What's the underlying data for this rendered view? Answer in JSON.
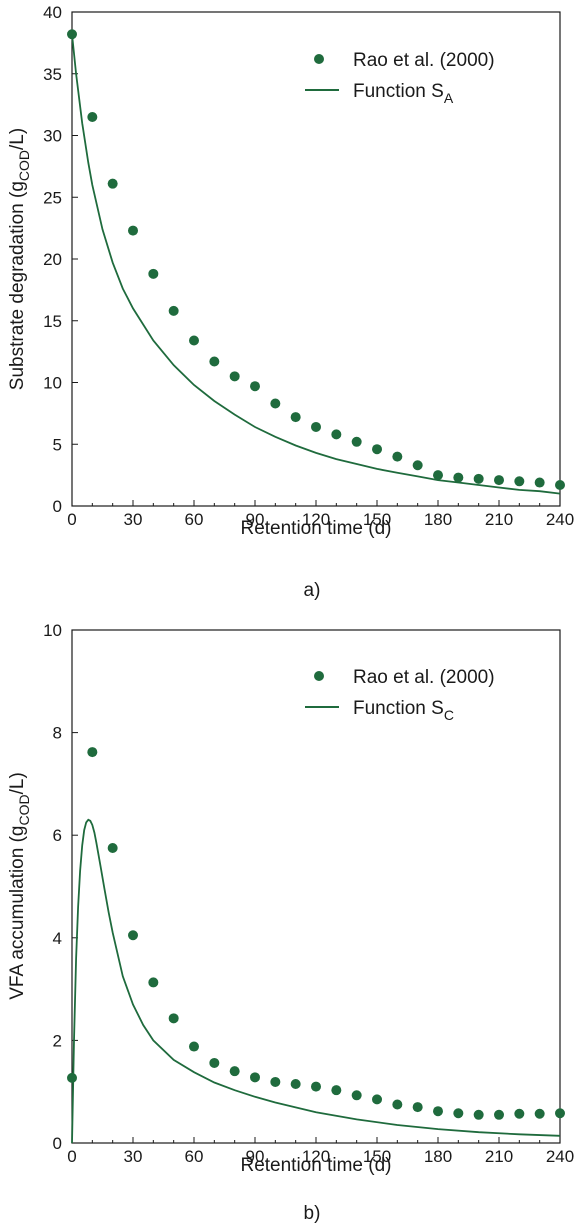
{
  "chart_data": [
    {
      "type": "scatter",
      "panel_label": "a)",
      "xlabel": "Retention time (d)",
      "ylabel_main": "Substrate degradation (g",
      "ylabel_sub": "COD",
      "ylabel_end": "/L)",
      "xlim": [
        0,
        240
      ],
      "ylim": [
        0,
        40
      ],
      "xticks": [
        0,
        30,
        60,
        90,
        120,
        150,
        180,
        210,
        240
      ],
      "yticks": [
        0,
        5,
        10,
        15,
        20,
        25,
        30,
        35,
        40
      ],
      "grid": false,
      "legend_position": "top-right",
      "color": "#1f6b3d",
      "series": [
        {
          "name": "Rao et al. (2000)",
          "kind": "points",
          "x": [
            0,
            10,
            20,
            30,
            40,
            50,
            60,
            70,
            80,
            90,
            100,
            110,
            120,
            130,
            140,
            150,
            160,
            170,
            180,
            190,
            200,
            210,
            220,
            230,
            240
          ],
          "y": [
            38.2,
            31.5,
            26.1,
            22.3,
            18.8,
            15.8,
            13.4,
            11.7,
            10.5,
            9.7,
            8.3,
            7.2,
            6.4,
            5.8,
            5.2,
            4.6,
            4.0,
            3.3,
            2.5,
            2.3,
            2.2,
            2.1,
            2.0,
            1.9,
            1.7
          ]
        },
        {
          "name": "Function S",
          "name_sub": "A",
          "kind": "line",
          "x": [
            0,
            2,
            5,
            8,
            10,
            15,
            20,
            25,
            30,
            40,
            50,
            60,
            70,
            80,
            90,
            100,
            110,
            120,
            130,
            140,
            150,
            160,
            170,
            180,
            190,
            200,
            210,
            220,
            230,
            240
          ],
          "y": [
            38.2,
            35.0,
            31.0,
            27.8,
            26.0,
            22.4,
            19.7,
            17.6,
            16.0,
            13.4,
            11.4,
            9.8,
            8.5,
            7.4,
            6.4,
            5.6,
            4.9,
            4.3,
            3.8,
            3.4,
            3.0,
            2.7,
            2.4,
            2.1,
            1.9,
            1.7,
            1.5,
            1.3,
            1.2,
            1.0
          ]
        }
      ]
    },
    {
      "type": "scatter",
      "panel_label": "b)",
      "xlabel": "Retention time (d)",
      "ylabel_main": "VFA accumulation (g",
      "ylabel_sub": "COD",
      "ylabel_end": "/L)",
      "xlim": [
        0,
        240
      ],
      "ylim": [
        0,
        10
      ],
      "xticks": [
        0,
        30,
        60,
        90,
        120,
        150,
        180,
        210,
        240
      ],
      "yticks": [
        0,
        2,
        4,
        6,
        8,
        10
      ],
      "grid": false,
      "legend_position": "top-right",
      "color": "#1f6b3d",
      "series": [
        {
          "name": "Rao et al. (2000)",
          "kind": "points",
          "x": [
            0,
            10,
            20,
            30,
            40,
            50,
            60,
            70,
            80,
            90,
            100,
            110,
            120,
            130,
            140,
            150,
            160,
            170,
            180,
            190,
            200,
            210,
            220,
            230,
            240
          ],
          "y": [
            1.27,
            7.62,
            5.75,
            4.05,
            3.13,
            2.43,
            1.88,
            1.56,
            1.4,
            1.28,
            1.19,
            1.15,
            1.1,
            1.03,
            0.93,
            0.85,
            0.75,
            0.7,
            0.62,
            0.58,
            0.55,
            0.55,
            0.57,
            0.57,
            0.58
          ]
        },
        {
          "name": "Function S",
          "name_sub": "C",
          "kind": "line",
          "x": [
            0,
            1,
            2,
            3,
            4,
            5,
            6,
            7,
            8,
            9,
            10,
            11,
            12,
            14,
            16,
            18,
            20,
            25,
            30,
            35,
            40,
            50,
            60,
            70,
            80,
            90,
            100,
            120,
            140,
            160,
            180,
            200,
            220,
            240
          ],
          "y": [
            0.0,
            2.0,
            3.6,
            4.6,
            5.3,
            5.8,
            6.1,
            6.25,
            6.3,
            6.28,
            6.2,
            6.05,
            5.85,
            5.4,
            4.95,
            4.5,
            4.1,
            3.25,
            2.7,
            2.3,
            2.0,
            1.62,
            1.38,
            1.18,
            1.03,
            0.9,
            0.79,
            0.6,
            0.46,
            0.35,
            0.27,
            0.21,
            0.17,
            0.14
          ]
        }
      ]
    }
  ]
}
